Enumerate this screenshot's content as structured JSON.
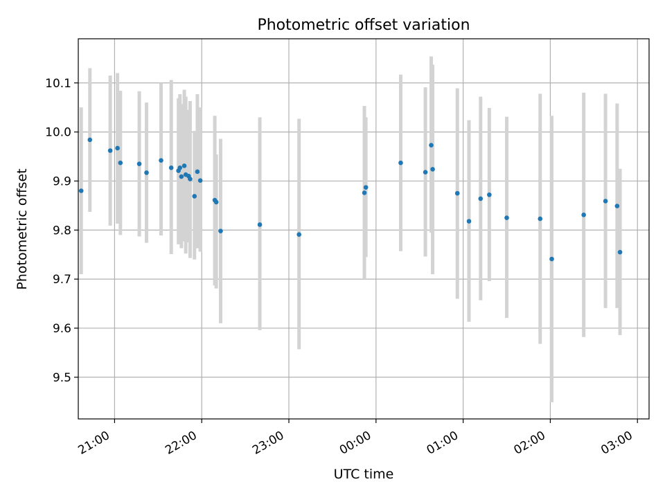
{
  "chart_data": {
    "type": "scatter",
    "title": "Photometric offset variation",
    "xlabel": "UTC time",
    "ylabel": "Photometric offset",
    "x_unit": "UTC hours",
    "xlim": [
      "20:35",
      "03:08"
    ],
    "ylim": [
      9.415,
      10.19
    ],
    "x_ticks": [
      "21:00",
      "22:00",
      "23:00",
      "00:00",
      "01:00",
      "02:00",
      "03:00"
    ],
    "y_ticks": [
      "9.5",
      "9.6",
      "9.7",
      "9.8",
      "9.9",
      "10.0",
      "10.1"
    ],
    "grid": true,
    "colors": {
      "points": "#1f77b4",
      "errorbars": "#d3d3d3",
      "grid": "#b0b0b0"
    },
    "points": [
      {
        "t": "20:37",
        "y": 9.88,
        "lo": 9.71,
        "hi": 10.05
      },
      {
        "t": "20:43",
        "y": 9.984,
        "lo": 9.837,
        "hi": 10.13
      },
      {
        "t": "20:57",
        "y": 9.962,
        "lo": 9.809,
        "hi": 10.115
      },
      {
        "t": "21:02",
        "y": 9.967,
        "lo": 9.813,
        "hi": 10.12
      },
      {
        "t": "21:04",
        "y": 9.937,
        "lo": 9.79,
        "hi": 10.084
      },
      {
        "t": "21:17",
        "y": 9.935,
        "lo": 9.787,
        "hi": 10.083
      },
      {
        "t": "21:22",
        "y": 9.917,
        "lo": 9.774,
        "hi": 10.06
      },
      {
        "t": "21:32",
        "y": 9.942,
        "lo": 9.789,
        "hi": 10.1
      },
      {
        "t": "21:39",
        "y": 9.927,
        "lo": 9.751,
        "hi": 10.106
      },
      {
        "t": "21:44",
        "y": 9.921,
        "lo": 9.771,
        "hi": 10.069
      },
      {
        "t": "21:45",
        "y": 9.927,
        "lo": 9.779,
        "hi": 10.077
      },
      {
        "t": "21:46",
        "y": 9.909,
        "lo": 9.763,
        "hi": 10.057
      },
      {
        "t": "21:48",
        "y": 9.931,
        "lo": 9.777,
        "hi": 10.086
      },
      {
        "t": "21:49",
        "y": 9.913,
        "lo": 9.752,
        "hi": 10.072
      },
      {
        "t": "21:51",
        "y": 9.91,
        "lo": 9.775,
        "hi": 10.045
      },
      {
        "t": "21:52",
        "y": 9.904,
        "lo": 9.743,
        "hi": 10.063
      },
      {
        "t": "21:55",
        "y": 9.869,
        "lo": 9.74,
        "hi": 10.002
      },
      {
        "t": "21:57",
        "y": 9.919,
        "lo": 9.763,
        "hi": 10.077
      },
      {
        "t": "21:59",
        "y": 9.901,
        "lo": 9.756,
        "hi": 10.05
      },
      {
        "t": "22:09",
        "y": 9.861,
        "lo": 9.687,
        "hi": 10.033
      },
      {
        "t": "22:10",
        "y": 9.857,
        "lo": 9.681,
        "hi": 9.954
      },
      {
        "t": "22:13",
        "y": 9.798,
        "lo": 9.61,
        "hi": 9.986
      },
      {
        "t": "22:40",
        "y": 9.811,
        "lo": 9.596,
        "hi": 10.03
      },
      {
        "t": "23:07",
        "y": 9.791,
        "lo": 9.557,
        "hi": 10.027
      },
      {
        "t": "23:52",
        "y": 9.876,
        "lo": 9.7,
        "hi": 10.053
      },
      {
        "t": "23:53",
        "y": 9.887,
        "lo": 9.745,
        "hi": 10.03
      },
      {
        "t": "00:17",
        "y": 9.937,
        "lo": 9.757,
        "hi": 10.117
      },
      {
        "t": "00:34",
        "y": 9.918,
        "lo": 9.746,
        "hi": 10.091
      },
      {
        "t": "00:38",
        "y": 9.973,
        "lo": 9.795,
        "hi": 10.154
      },
      {
        "t": "00:39",
        "y": 9.924,
        "lo": 9.71,
        "hi": 10.137
      },
      {
        "t": "00:56",
        "y": 9.875,
        "lo": 9.66,
        "hi": 10.089
      },
      {
        "t": "01:04",
        "y": 9.818,
        "lo": 9.613,
        "hi": 10.024
      },
      {
        "t": "01:12",
        "y": 9.864,
        "lo": 9.657,
        "hi": 10.072
      },
      {
        "t": "01:18",
        "y": 9.872,
        "lo": 9.696,
        "hi": 10.049
      },
      {
        "t": "01:30",
        "y": 9.825,
        "lo": 9.621,
        "hi": 10.031
      },
      {
        "t": "01:53",
        "y": 9.823,
        "lo": 9.568,
        "hi": 10.078
      },
      {
        "t": "02:01",
        "y": 9.741,
        "lo": 9.449,
        "hi": 10.033
      },
      {
        "t": "02:23",
        "y": 9.831,
        "lo": 9.582,
        "hi": 10.08
      },
      {
        "t": "02:38",
        "y": 9.859,
        "lo": 9.641,
        "hi": 10.078
      },
      {
        "t": "02:46",
        "y": 9.849,
        "lo": 9.641,
        "hi": 10.058
      },
      {
        "t": "02:48",
        "y": 9.755,
        "lo": 9.586,
        "hi": 9.925
      }
    ]
  }
}
